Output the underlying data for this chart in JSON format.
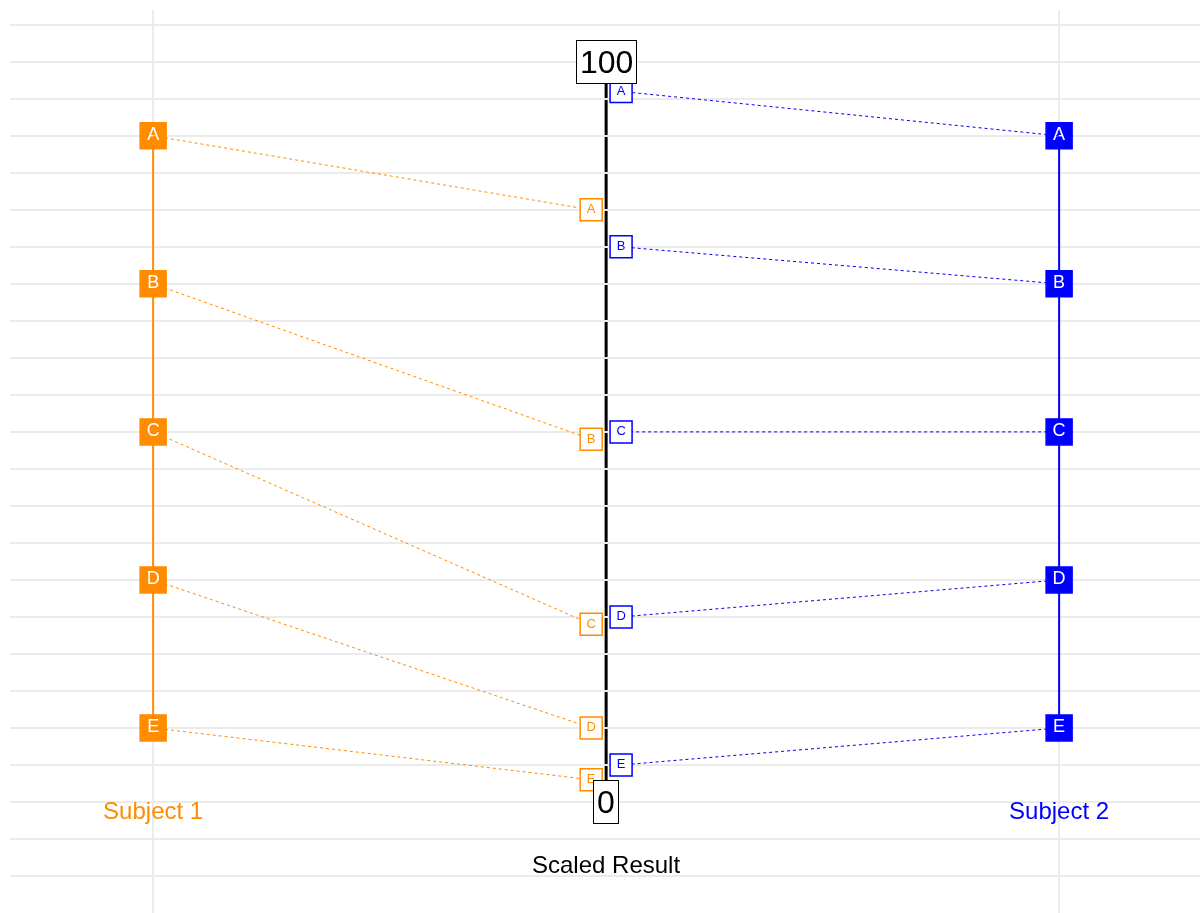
{
  "chart_data": {
    "type": "line",
    "xlabel": "Scaled Result",
    "categories": [
      "Subject 1",
      null,
      "Subject 2"
    ],
    "ylim": [
      -15,
      107
    ],
    "yticks": [
      {
        "value": -10,
        "label": null
      },
      {
        "value": -5,
        "label": null
      },
      0,
      {
        "value": 5,
        "label": null
      },
      {
        "value": 10,
        "label": null
      },
      {
        "value": 15,
        "label": null
      },
      {
        "value": 20,
        "label": null
      },
      {
        "value": 25,
        "label": null
      },
      {
        "value": 30,
        "label": null
      },
      {
        "value": 35,
        "label": null
      },
      {
        "value": 40,
        "label": null
      },
      {
        "value": 45,
        "label": null
      },
      {
        "value": 50,
        "label": null
      },
      {
        "value": 55,
        "label": null
      },
      {
        "value": 60,
        "label": null
      },
      {
        "value": 65,
        "label": null
      },
      {
        "value": 70,
        "label": null
      },
      {
        "value": 75,
        "label": null
      },
      {
        "value": 80,
        "label": null
      },
      {
        "value": 85,
        "label": null
      },
      {
        "value": 90,
        "label": null
      },
      {
        "value": 95,
        "label": null
      },
      100,
      {
        "value": 105,
        "label": null
      }
    ],
    "grid": true,
    "marker": "square",
    "series": [
      {
        "color": "#ff8c00",
        "x": [
          "Subject 1",
          "Subject 1",
          "Subject 1",
          "Subject 1",
          "Subject 1"
        ],
        "values": [
          90,
          70,
          50,
          30,
          10
        ],
        "value_labels": [
          "A",
          "B",
          "C",
          "D",
          "E"
        ]
      },
      {
        "color": "#ff8c00",
        "x": [
          "Subject 1",
          null
        ],
        "values": [
          90,
          80
        ],
        "value_labels": [
          null,
          "A"
        ],
        "line_style": "dotted"
      },
      {
        "color": "#ff8c00",
        "x": [
          "Subject 1",
          null
        ],
        "values": [
          70,
          49
        ],
        "value_labels": [
          null,
          "B"
        ],
        "line_style": "dotted"
      },
      {
        "color": "#ff8c00",
        "x": [
          "Subject 1",
          null
        ],
        "values": [
          50,
          24
        ],
        "value_labels": [
          null,
          "C"
        ],
        "line_style": "dotted"
      },
      {
        "color": "#ff8c00",
        "x": [
          "Subject 1",
          null
        ],
        "values": [
          30,
          10
        ],
        "value_labels": [
          null,
          "D"
        ],
        "line_style": "dotted"
      },
      {
        "color": "#ff8c00",
        "x": [
          "Subject 1",
          null
        ],
        "values": [
          10,
          3
        ],
        "value_labels": [
          null,
          "E"
        ],
        "line_style": "dotted"
      },
      {
        "color": "#0000ff",
        "x": [
          "Subject 2",
          "Subject 2",
          "Subject 2",
          "Subject 2",
          "Subject 2"
        ],
        "values": [
          90,
          70,
          50,
          30,
          10
        ],
        "value_labels": [
          "A",
          "B",
          "C",
          "D",
          "E"
        ]
      },
      {
        "color": "#0000ff",
        "x": [
          "Subject 2",
          null
        ],
        "values": [
          90,
          96
        ],
        "value_labels": [
          null,
          "A"
        ],
        "line_style": "dotted"
      },
      {
        "color": "#0000ff",
        "x": [
          "Subject 2",
          null
        ],
        "values": [
          70,
          75
        ],
        "value_labels": [
          null,
          "B"
        ],
        "line_style": "dotted"
      },
      {
        "color": "#0000ff",
        "x": [
          "Subject 2",
          null
        ],
        "values": [
          50,
          50
        ],
        "value_labels": [
          null,
          "C"
        ],
        "line_style": "dotted"
      },
      {
        "color": "#0000ff",
        "x": [
          "Subject 2",
          null
        ],
        "values": [
          30,
          25
        ],
        "value_labels": [
          null,
          "D"
        ],
        "line_style": "dotted"
      },
      {
        "color": "#0000ff",
        "x": [
          "Subject 2",
          null
        ],
        "values": [
          10,
          5
        ],
        "value_labels": [
          null,
          "E"
        ],
        "line_style": "dotted"
      }
    ]
  }
}
